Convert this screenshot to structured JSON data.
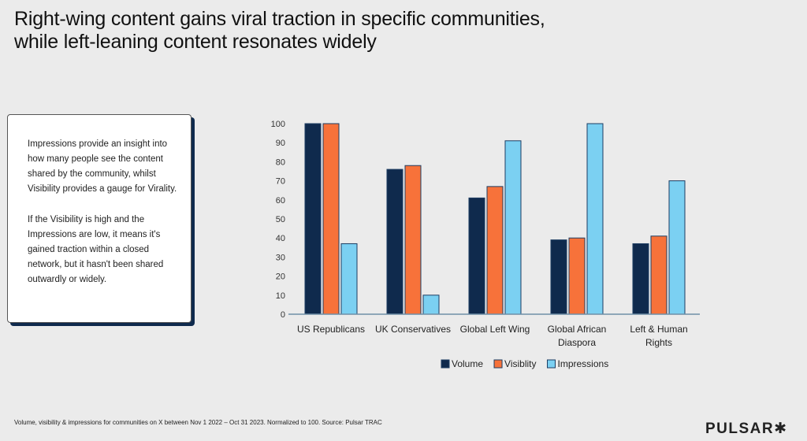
{
  "title_line1": "Right-wing content gains viral traction in specific communities,",
  "title_line2": "while left-leaning content resonates widely",
  "info_box": {
    "paragraph1": "Impressions provide an insight into how many people see the content shared by the community, whilst Visibility provides a gauge for Virality.",
    "paragraph2": "If the Visibility is high and the Impressions are low, it means it's gained traction within a closed network, but it hasn't been shared outwardly or widely."
  },
  "footnote": "Volume, visibility & impressions for communities on X between Nov 1 2022 – Oct 31 2023. Normalized to 100. Source: Pulsar TRAC",
  "logo": "PULSAR✱",
  "chart_data": {
    "type": "bar",
    "categories": [
      [
        "US Republicans"
      ],
      [
        "UK Conservatives"
      ],
      [
        "Global Left Wing"
      ],
      [
        "Global African",
        "Diaspora"
      ],
      [
        "Left & Human",
        "Rights"
      ]
    ],
    "series": [
      {
        "name": "Volume",
        "color": "#0f2a4d",
        "values": [
          100,
          76,
          61,
          39,
          37
        ]
      },
      {
        "name": "Visiblity",
        "color": "#f7723a",
        "values": [
          100,
          78,
          67,
          40,
          41
        ]
      },
      {
        "name": "Impressions",
        "color": "#7bd0f2",
        "values": [
          37,
          10,
          91,
          100,
          70
        ]
      }
    ],
    "ylim": [
      0,
      100
    ],
    "yticks": [
      0,
      10,
      20,
      30,
      40,
      50,
      60,
      70,
      80,
      90,
      100
    ],
    "grid": false,
    "legend": "bottom"
  }
}
